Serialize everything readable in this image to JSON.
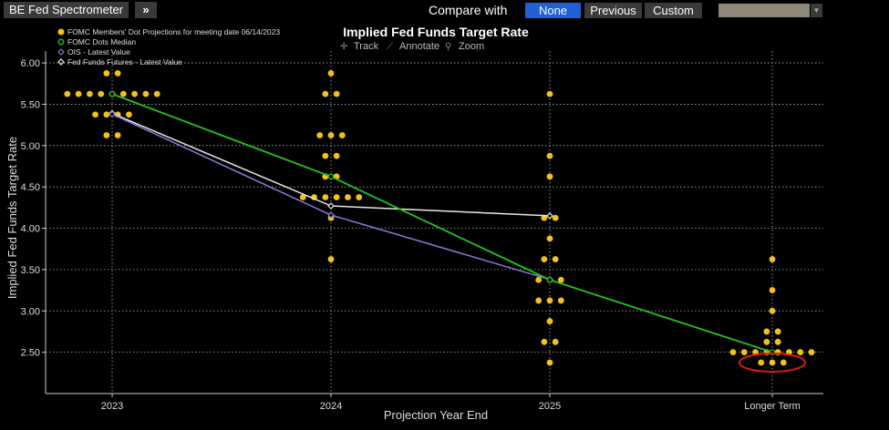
{
  "toolbar": {
    "app_title": "BE Fed Spectrometer",
    "expand_label": "»",
    "compare_label": "Compare with",
    "compare_options": [
      "None",
      "Previous",
      "Custom"
    ],
    "compare_selected": "None",
    "custom_value": ""
  },
  "chart_tools": {
    "track": "Track",
    "annotate": "Annotate",
    "zoom": "Zoom"
  },
  "colors": {
    "background": "#000000",
    "dots": "#f2c21a",
    "median": "#22c322",
    "ois": "#8c7ad8",
    "futures": "#e8e8e8",
    "grid": "#b4b4b4",
    "highlight_ellipse": "#e01818",
    "accent_selected": "#1f5fd8"
  },
  "chart_data": {
    "type": "scatter",
    "title": "Implied Fed Funds Target Rate",
    "xlabel": "Projection Year End",
    "ylabel": "Implied Fed Funds Target Rate",
    "categories": [
      "2023",
      "2024",
      "2025",
      "Longer Term"
    ],
    "yticks": [
      "2.50",
      "3.00",
      "3.50",
      "4.00",
      "4.50",
      "5.00",
      "5.50",
      "6.00"
    ],
    "ylim": [
      2.0,
      6.1
    ],
    "grid": true,
    "legend_position": "top-left",
    "legend": [
      "FOMC Members' Dot Projections for meeting date 06/14/2023",
      "FOMC Dots Median",
      "OIS - Latest Value",
      "Fed Funds Futures - Latest Value"
    ],
    "dots": [
      {
        "category": "2023",
        "rows": [
          {
            "value": 5.875,
            "count": 2
          },
          {
            "value": 5.625,
            "count": 9
          },
          {
            "value": 5.375,
            "count": 4
          },
          {
            "value": 5.125,
            "count": 2
          }
        ]
      },
      {
        "category": "2024",
        "rows": [
          {
            "value": 5.875,
            "count": 1
          },
          {
            "value": 5.625,
            "count": 2
          },
          {
            "value": 5.125,
            "count": 3
          },
          {
            "value": 4.875,
            "count": 2
          },
          {
            "value": 4.625,
            "count": 2
          },
          {
            "value": 4.375,
            "count": 6
          },
          {
            "value": 4.125,
            "count": 1
          },
          {
            "value": 3.625,
            "count": 1
          }
        ]
      },
      {
        "category": "2025",
        "rows": [
          {
            "value": 5.625,
            "count": 1
          },
          {
            "value": 4.875,
            "count": 1
          },
          {
            "value": 4.625,
            "count": 1
          },
          {
            "value": 4.125,
            "count": 2
          },
          {
            "value": 3.875,
            "count": 1
          },
          {
            "value": 3.625,
            "count": 2
          },
          {
            "value": 3.375,
            "count": 3
          },
          {
            "value": 3.125,
            "count": 3
          },
          {
            "value": 2.875,
            "count": 1
          },
          {
            "value": 2.625,
            "count": 2
          },
          {
            "value": 2.375,
            "count": 1
          }
        ]
      },
      {
        "category": "Longer Term",
        "rows": [
          {
            "value": 3.625,
            "count": 1
          },
          {
            "value": 3.25,
            "count": 1
          },
          {
            "value": 3.0,
            "count": 1
          },
          {
            "value": 2.75,
            "count": 2
          },
          {
            "value": 2.625,
            "count": 2
          },
          {
            "value": 2.5,
            "count": 8
          },
          {
            "value": 2.375,
            "count": 3
          }
        ]
      }
    ],
    "series": [
      {
        "name": "FOMC Dots Median",
        "values": [
          5.625,
          4.625,
          3.375,
          2.5
        ]
      },
      {
        "name": "OIS - Latest Value",
        "values": [
          5.38,
          4.16,
          3.38,
          null
        ]
      },
      {
        "name": "Fed Funds Futures - Latest Value",
        "values": [
          5.39,
          4.27,
          4.15,
          null
        ]
      }
    ],
    "highlight": {
      "category": "Longer Term",
      "value": 2.375
    }
  }
}
